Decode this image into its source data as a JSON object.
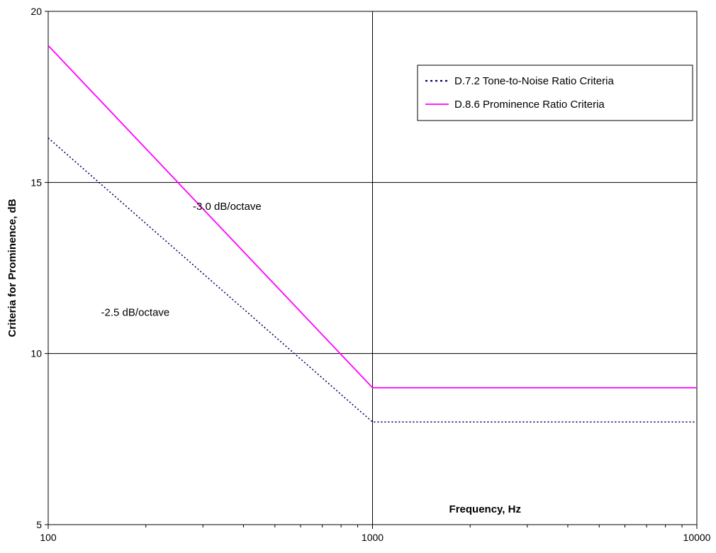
{
  "chart_data": {
    "type": "line",
    "title": "",
    "xlabel": "Frequency, Hz",
    "ylabel": "Criteria for Prominence, dB",
    "x_scale": "log",
    "xlim": [
      100,
      10000
    ],
    "ylim": [
      5,
      20
    ],
    "x_ticks": [
      100,
      1000,
      10000
    ],
    "x_tick_labels": [
      "100",
      "1000",
      "10000"
    ],
    "y_ticks": [
      5,
      10,
      15,
      20
    ],
    "y_tick_labels": [
      "5",
      "10",
      "15",
      "20"
    ],
    "grid": true,
    "legend_position": "top-right",
    "series": [
      {
        "name": "D.7.2 Tone-to-Noise Ratio Criteria",
        "color": "#000066",
        "style": "dotted",
        "x": [
          100,
          1000,
          10000
        ],
        "y": [
          16.3,
          8,
          8
        ]
      },
      {
        "name": "D.8.6 Prominence Ratio Criteria",
        "color": "#ff00ff",
        "style": "solid",
        "x": [
          100,
          1000,
          10000
        ],
        "y": [
          19,
          9,
          9
        ]
      }
    ],
    "annotations": [
      {
        "text": "-3.0 dB/octave",
        "x": 250,
        "y": 14.2
      },
      {
        "text": "-2.5 dB/octave",
        "x": 150,
        "y": 11.1
      }
    ]
  }
}
